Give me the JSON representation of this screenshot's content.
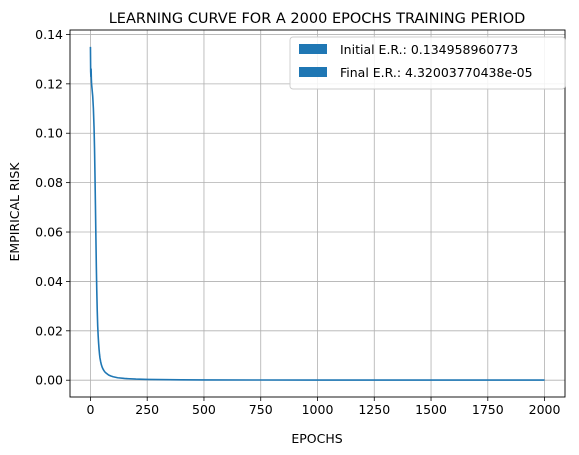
{
  "chart_data": {
    "type": "line",
    "title": "LEARNING CURVE FOR A 2000 EPOCHS TRAINING PERIOD",
    "xlabel": "EPOCHS",
    "ylabel": "EMPIRICAL RISK",
    "xlim": [
      -90,
      2090
    ],
    "ylim": [
      -0.0068,
      0.1418
    ],
    "x_ticks": [
      0,
      250,
      500,
      750,
      1000,
      1250,
      1500,
      1750,
      2000
    ],
    "x_tick_labels": [
      "0",
      "250",
      "500",
      "750",
      "1000",
      "1250",
      "1500",
      "1750",
      "2000"
    ],
    "y_ticks": [
      0.0,
      0.02,
      0.04,
      0.06,
      0.08,
      0.1,
      0.12,
      0.14
    ],
    "y_tick_labels": [
      "0.00",
      "0.02",
      "0.04",
      "0.06",
      "0.08",
      "0.10",
      "0.12",
      "0.14"
    ],
    "grid": true,
    "legend_position": "top-right",
    "legend": [
      {
        "label": "Initial E.R.: 0.134958960773",
        "color": "#1f77b4"
      },
      {
        "label": "Final E.R.: 4.32003770438e-05",
        "color": "#1f77b4"
      }
    ],
    "series": [
      {
        "color": "#1f77b4",
        "x": [
          0,
          1,
          2,
          3,
          4,
          5,
          7,
          10,
          13,
          16,
          18,
          20,
          22,
          24,
          26,
          28,
          30,
          32,
          34,
          36,
          38,
          40,
          42,
          45,
          48,
          52,
          56,
          60,
          65,
          70,
          80,
          90,
          100,
          120,
          150,
          200,
          250,
          300,
          400,
          500,
          750,
          1000,
          1250,
          1500,
          1750,
          2000
        ],
        "y": [
          0.134959,
          0.125,
          0.123,
          0.126,
          0.122,
          0.12,
          0.118,
          0.115,
          0.11,
          0.102,
          0.094,
          0.083,
          0.071,
          0.058,
          0.046,
          0.036,
          0.028,
          0.022,
          0.018,
          0.015,
          0.0125,
          0.0105,
          0.009,
          0.0075,
          0.0063,
          0.0052,
          0.0044,
          0.0038,
          0.0032,
          0.0028,
          0.0021,
          0.0017,
          0.0014,
          0.001,
          0.0007,
          0.00045,
          0.00032,
          0.00025,
          0.00017,
          0.00012,
          8e-05,
          6e-05,
          5e-05,
          4.7e-05,
          4.5e-05,
          4.32e-05
        ]
      }
    ]
  }
}
